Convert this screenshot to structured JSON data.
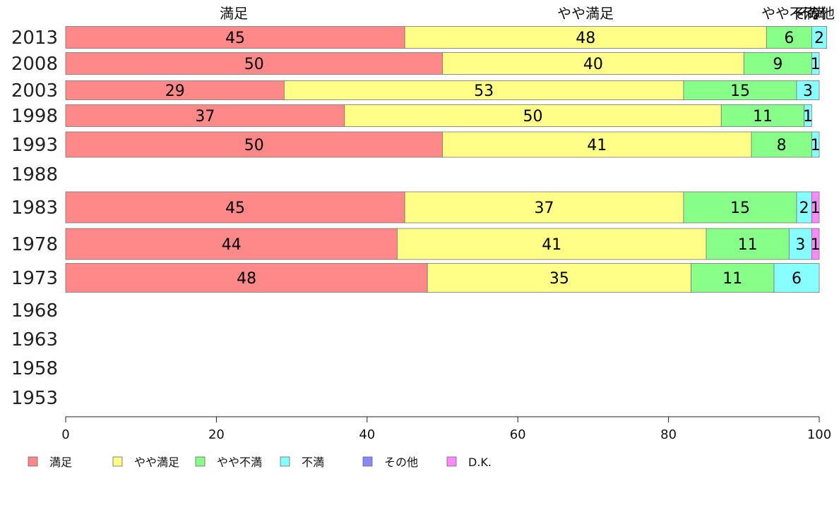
{
  "chart_data": {
    "type": "bar",
    "orientation": "horizontal",
    "stacked": true,
    "categories": [
      "2013",
      "2008",
      "2003",
      "1998",
      "1993",
      "1988",
      "1983",
      "1978",
      "1973",
      "1968",
      "1963",
      "1958",
      "1953"
    ],
    "series": [
      {
        "name": "満足",
        "color": "#ff8888",
        "values": [
          45,
          50,
          29,
          37,
          50,
          null,
          45,
          44,
          48,
          null,
          null,
          null,
          null
        ]
      },
      {
        "name": "やや満足",
        "color": "#ffff88",
        "values": [
          48,
          40,
          53,
          50,
          41,
          null,
          37,
          41,
          35,
          null,
          null,
          null,
          null
        ]
      },
      {
        "name": "やや不満",
        "color": "#88ff88",
        "values": [
          6,
          9,
          15,
          11,
          8,
          null,
          15,
          11,
          11,
          null,
          null,
          null,
          null
        ]
      },
      {
        "name": "不満",
        "color": "#88ffff",
        "values": [
          2,
          1,
          3,
          1,
          1,
          null,
          2,
          3,
          6,
          null,
          null,
          null,
          null
        ]
      },
      {
        "name": "その他",
        "color": "#8888ff",
        "values": [
          0,
          0,
          0,
          0,
          0,
          null,
          0,
          0,
          0,
          null,
          null,
          null,
          null
        ]
      },
      {
        "name": "D.K.",
        "color": "#ff88ff",
        "values": [
          0,
          0,
          0,
          0,
          0,
          null,
          1,
          1,
          0,
          null,
          null,
          null,
          null
        ]
      }
    ],
    "segment_labels": [
      [
        "45",
        "48",
        "6",
        "2",
        "",
        ""
      ],
      [
        "50",
        "40",
        "9",
        "1",
        "",
        ""
      ],
      [
        "29",
        "53",
        "15",
        "3",
        "",
        ""
      ],
      [
        "37",
        "50",
        "11",
        "1",
        "",
        ""
      ],
      [
        "50",
        "41",
        "8",
        "1",
        "",
        ""
      ],
      [
        "",
        "",
        "",
        "",
        "",
        ""
      ],
      [
        "45",
        "37",
        "15",
        "2",
        "",
        "1"
      ],
      [
        "44",
        "41",
        "11",
        "3",
        "",
        "1"
      ],
      [
        "48",
        "35",
        "11",
        "6",
        "",
        ""
      ],
      [
        "",
        "",
        "",
        "",
        "",
        ""
      ],
      [
        "",
        "",
        "",
        "",
        "",
        ""
      ],
      [
        "",
        "",
        "",
        "",
        "",
        ""
      ],
      [
        "",
        "",
        "",
        "",
        "",
        ""
      ]
    ],
    "top_labels": [
      "満足",
      "やや満足",
      "やや不満",
      "不満",
      "その他"
    ],
    "xlim": [
      0,
      100
    ],
    "xticks": [
      "0",
      "20",
      "40",
      "60",
      "80",
      "100"
    ],
    "grid": false,
    "legend_position": "bottom"
  }
}
